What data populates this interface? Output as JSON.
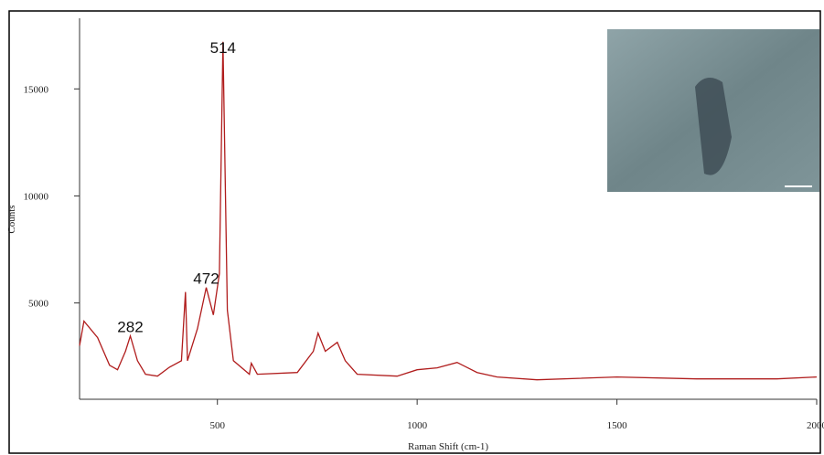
{
  "chart_data": {
    "type": "line",
    "x_label": "Raman Shift (cm-1)",
    "y_label": "Counts",
    "xlim": [
      155,
      2000
    ],
    "ylim": [
      500,
      18300
    ],
    "xticks": [
      500,
      1000,
      1500,
      2000
    ],
    "yticks": [
      5000,
      10000,
      15000
    ],
    "x": [
      155,
      166,
      200,
      230,
      250,
      270,
      282,
      300,
      320,
      350,
      380,
      410,
      420,
      425,
      450,
      472,
      490,
      505,
      514,
      525,
      540,
      580,
      585,
      600,
      700,
      740,
      752,
      770,
      800,
      820,
      850,
      950,
      1000,
      1050,
      1100,
      1150,
      1200,
      1300,
      1500,
      1700,
      1900,
      2000
    ],
    "series": [
      {
        "name": "Counts",
        "color": "#b01c1c",
        "values": [
          3000,
          4150,
          3380,
          2090,
          1880,
          2740,
          3460,
          2300,
          1670,
          1580,
          2000,
          2300,
          5510,
          2300,
          3800,
          5720,
          4440,
          6370,
          17200,
          4660,
          2300,
          1670,
          2180,
          1670,
          1750,
          2740,
          3590,
          2740,
          3160,
          2300,
          1670,
          1580,
          1880,
          1970,
          2220,
          1750,
          1540,
          1410,
          1540,
          1450,
          1450,
          1540
        ]
      }
    ],
    "annotations": [
      {
        "x": 514,
        "y": 17200
      },
      {
        "x": 472,
        "y": 5720
      },
      {
        "x": 282,
        "y": 3460
      }
    ]
  }
}
